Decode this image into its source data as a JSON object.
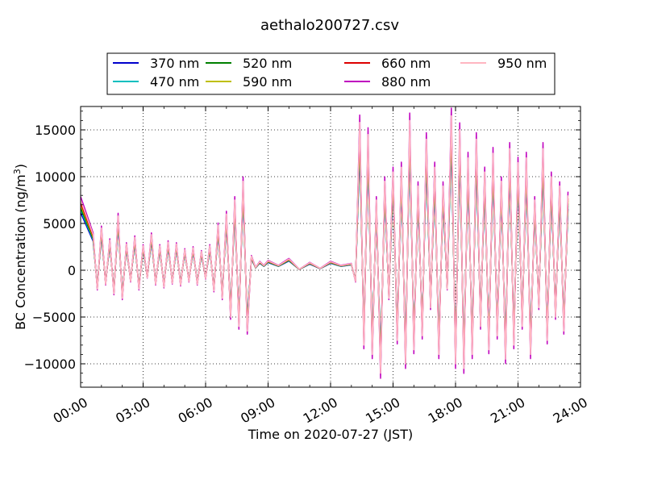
{
  "chart_data": {
    "type": "line",
    "title": "aethalo200727.csv",
    "xlabel": "Time on 2020-07-27 (JST)",
    "ylabel_main": "BC Concentration (ng/m",
    "ylabel_sup": "3",
    "ylabel_tail": ")",
    "xlim": [
      0,
      24
    ],
    "ylim": [
      -12500,
      17500
    ],
    "x_ticks": [
      0,
      3,
      6,
      9,
      12,
      15,
      18,
      21,
      24
    ],
    "x_tick_labels": [
      "00:00",
      "03:00",
      "06:00",
      "09:00",
      "12:00",
      "15:00",
      "18:00",
      "21:00",
      "24:00"
    ],
    "y_ticks": [
      -10000,
      -5000,
      0,
      5000,
      10000,
      15000
    ],
    "y_tick_labels": [
      "−10000",
      "−5000",
      "0",
      "5000",
      "10000",
      "15000"
    ],
    "grid": true,
    "legend_placement": "top-center, above plot, 4 columns",
    "x": [
      0.0,
      0.6,
      0.8,
      1.0,
      1.2,
      1.4,
      1.6,
      1.8,
      2.0,
      2.2,
      2.4,
      2.6,
      2.8,
      3.0,
      3.2,
      3.4,
      3.6,
      3.8,
      4.0,
      4.2,
      4.4,
      4.6,
      4.8,
      5.0,
      5.2,
      5.4,
      5.6,
      5.8,
      6.0,
      6.2,
      6.4,
      6.6,
      6.8,
      7.0,
      7.2,
      7.4,
      7.6,
      7.8,
      8.0,
      8.2,
      8.4,
      8.6,
      8.8,
      9.0,
      9.5,
      10.0,
      10.5,
      11.0,
      11.5,
      12.0,
      12.5,
      13.0,
      13.2,
      13.4,
      13.6,
      13.8,
      14.0,
      14.2,
      14.4,
      14.6,
      14.8,
      15.0,
      15.2,
      15.4,
      15.6,
      15.8,
      16.0,
      16.2,
      16.4,
      16.6,
      16.8,
      17.0,
      17.2,
      17.4,
      17.6,
      17.8,
      18.0,
      18.2,
      18.4,
      18.6,
      18.8,
      19.0,
      19.2,
      19.4,
      19.6,
      19.8,
      20.0,
      20.2,
      20.4,
      20.6,
      20.8,
      21.0,
      21.2,
      21.4,
      21.6,
      21.8,
      22.0,
      22.2,
      22.4,
      22.6,
      22.8,
      23.0,
      23.2,
      23.4,
      23.6,
      23.8
    ],
    "base": [
      7500,
      3800,
      -2000,
      4500,
      -1500,
      3200,
      -2500,
      5800,
      -3000,
      2800,
      -1200,
      3500,
      -2000,
      2600,
      -800,
      3800,
      -1500,
      2600,
      -1800,
      3000,
      -1400,
      2800,
      -1600,
      2200,
      -1200,
      2400,
      -1500,
      2000,
      -900,
      2600,
      -2200,
      4800,
      -3000,
      6000,
      -5000,
      7500,
      -6000,
      9500,
      -6500,
      1500,
      300,
      900,
      500,
      1000,
      500,
      1200,
      100,
      800,
      200,
      900,
      500,
      700,
      -1200,
      15800,
      -8000,
      14500,
      -9000,
      7500,
      -11000,
      9500,
      -3000,
      10500,
      -7500,
      11000,
      -10000,
      16000,
      -8500,
      9000,
      -7000,
      14000,
      -4000,
      11000,
      -9000,
      9000,
      -2000,
      16500,
      -10000,
      15000,
      -10500,
      12000,
      -9000,
      14000,
      -6000,
      10500,
      -8500,
      12500,
      -7000,
      9500,
      -9500,
      13000,
      -8000,
      11500,
      -6000,
      12000,
      -9000,
      7500,
      -4000,
      13000,
      -7500,
      10000,
      -5000,
      9000,
      -6500,
      8000
    ],
    "series": [
      {
        "name": "370 nm",
        "color": "#0000cc",
        "scale": 0.82,
        "end": 200
      },
      {
        "name": "470 nm",
        "color": "#00bfbf",
        "scale": 0.86,
        "end": -900
      },
      {
        "name": "520 nm",
        "color": "#008000",
        "scale": 0.89,
        "end": -1800
      },
      {
        "name": "590 nm",
        "color": "#bfbf00",
        "scale": 0.93,
        "end": -2600
      },
      {
        "name": "660 nm",
        "color": "#dd0000",
        "scale": 0.96,
        "end": -3400
      },
      {
        "name": "880 nm",
        "color": "#bf00bf",
        "scale": 1.05,
        "end": -6900
      },
      {
        "name": "950 nm",
        "color": "#ffb6c1",
        "scale": 1.0,
        "end": 7000
      }
    ]
  }
}
